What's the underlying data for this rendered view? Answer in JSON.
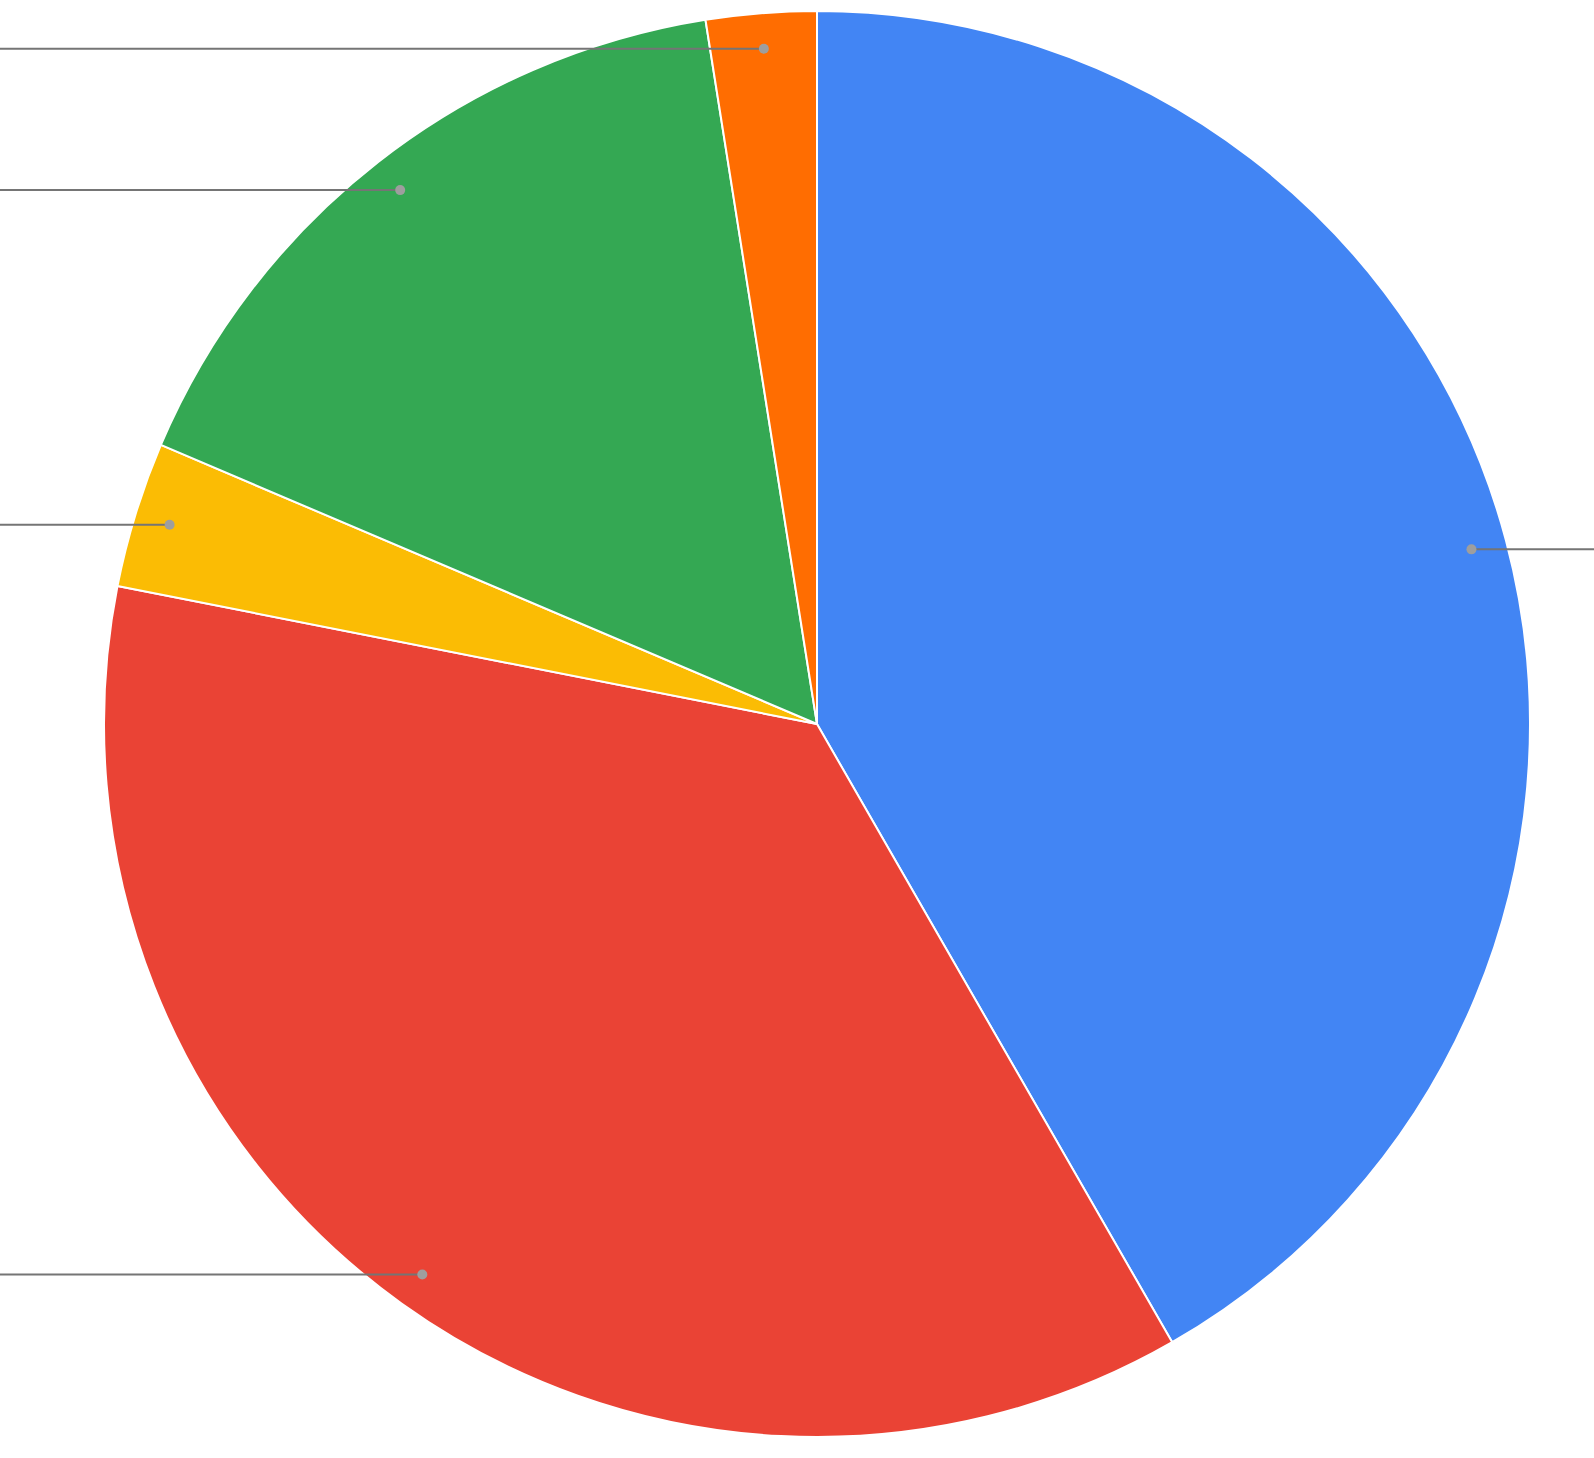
{
  "chart_data": {
    "type": "pie",
    "categories": [
      null,
      null,
      null,
      null,
      null
    ],
    "values": [
      41.7,
      36.4,
      3.3,
      16.1,
      2.5
    ],
    "colors": [
      "#4285f4",
      "#ea4335",
      "#fbbc04",
      "#34a853",
      "#ff6d01"
    ],
    "legend": false
  }
}
